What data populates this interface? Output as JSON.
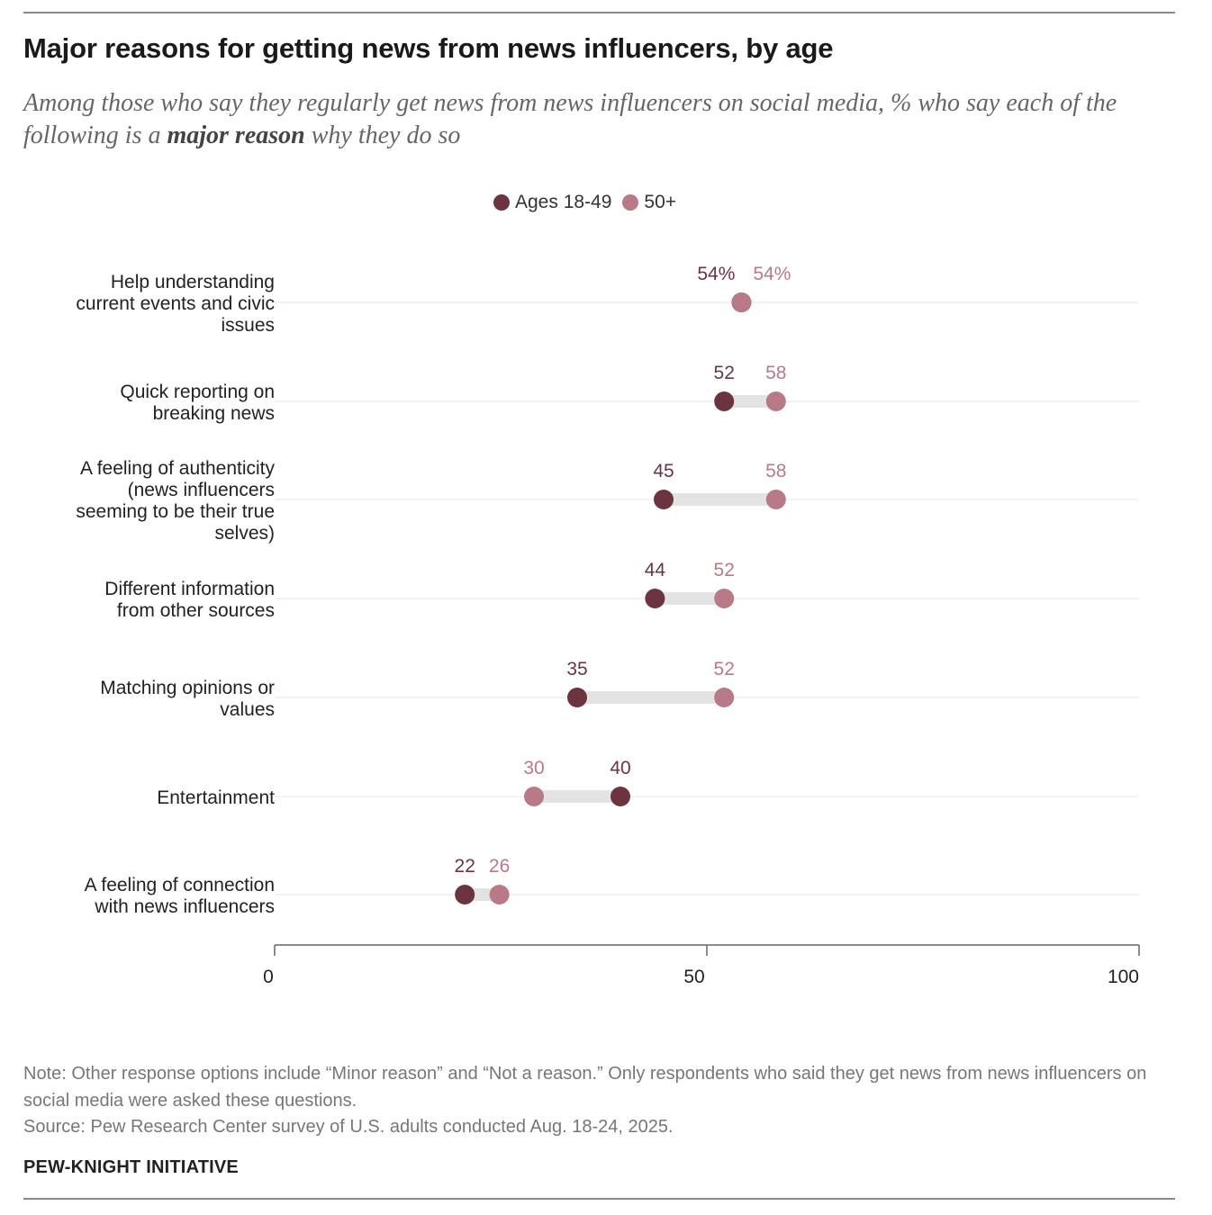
{
  "title": "Major reasons for getting news from news influencers, by age",
  "subtitle_parts": {
    "before": "Among those who say they regularly get news from news influencers on social media, % who say each of the following is a ",
    "bold": "major reason",
    "after": " why they do so"
  },
  "legend": [
    {
      "label": "Ages 18-49",
      "color": "#6b3440"
    },
    {
      "label": "50+",
      "color": "#b87a86"
    }
  ],
  "chart_data": {
    "type": "dot",
    "title": "Major reasons for getting news from news influencers, by age",
    "xlim": [
      0,
      100
    ],
    "x_ticks": [
      0,
      50,
      100
    ],
    "grid": false,
    "legend_position": "top-center",
    "categories": [
      [
        "Help understanding",
        "current events and civic",
        "issues"
      ],
      [
        "Quick reporting on",
        "breaking news"
      ],
      [
        "A feeling of authenticity",
        "(news influencers",
        "seeming to be their true",
        "selves)"
      ],
      [
        "Different information",
        "from other sources"
      ],
      [
        "Matching opinions or",
        "values"
      ],
      [
        "Entertainment"
      ],
      [
        "A feeling of connection",
        "with news influencers"
      ]
    ],
    "series": [
      {
        "name": "Ages 18-49",
        "color": "#6b3440",
        "values": [
          54,
          52,
          45,
          44,
          35,
          40,
          22
        ],
        "labels": [
          "54%",
          "52",
          "45",
          "44",
          "35",
          "40",
          "22"
        ]
      },
      {
        "name": "50+",
        "color": "#b87a86",
        "values": [
          54,
          58,
          58,
          52,
          52,
          30,
          26
        ],
        "labels": [
          "54%",
          "58",
          "58",
          "52",
          "52",
          "30",
          "26"
        ]
      }
    ]
  },
  "note": "Note: Other response options include “Minor reason” and “Not a reason.” Only respondents who said they get news from news influencers on social media were asked these questions.",
  "source": "Source: Pew Research Center survey of U.S. adults conducted Aug. 18-24, 2025.",
  "brand": "PEW-KNIGHT INITIATIVE"
}
